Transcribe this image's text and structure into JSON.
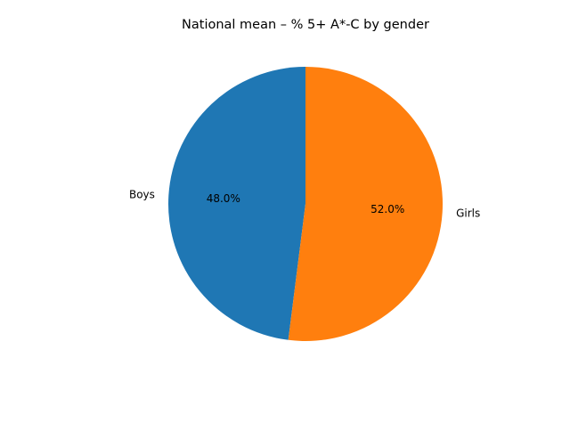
{
  "chart_data": {
    "type": "pie",
    "title": "National mean – % 5+ A*-C by gender",
    "labels": [
      "Boys",
      "Girls"
    ],
    "values": [
      48.0,
      52.0
    ],
    "percent_labels": [
      "48.0%",
      "52.0%"
    ],
    "colors": [
      "#1f77b4",
      "#ff7f0e"
    ],
    "start_angle_deg": 90,
    "direction": "counterclockwise",
    "legend": "none"
  }
}
